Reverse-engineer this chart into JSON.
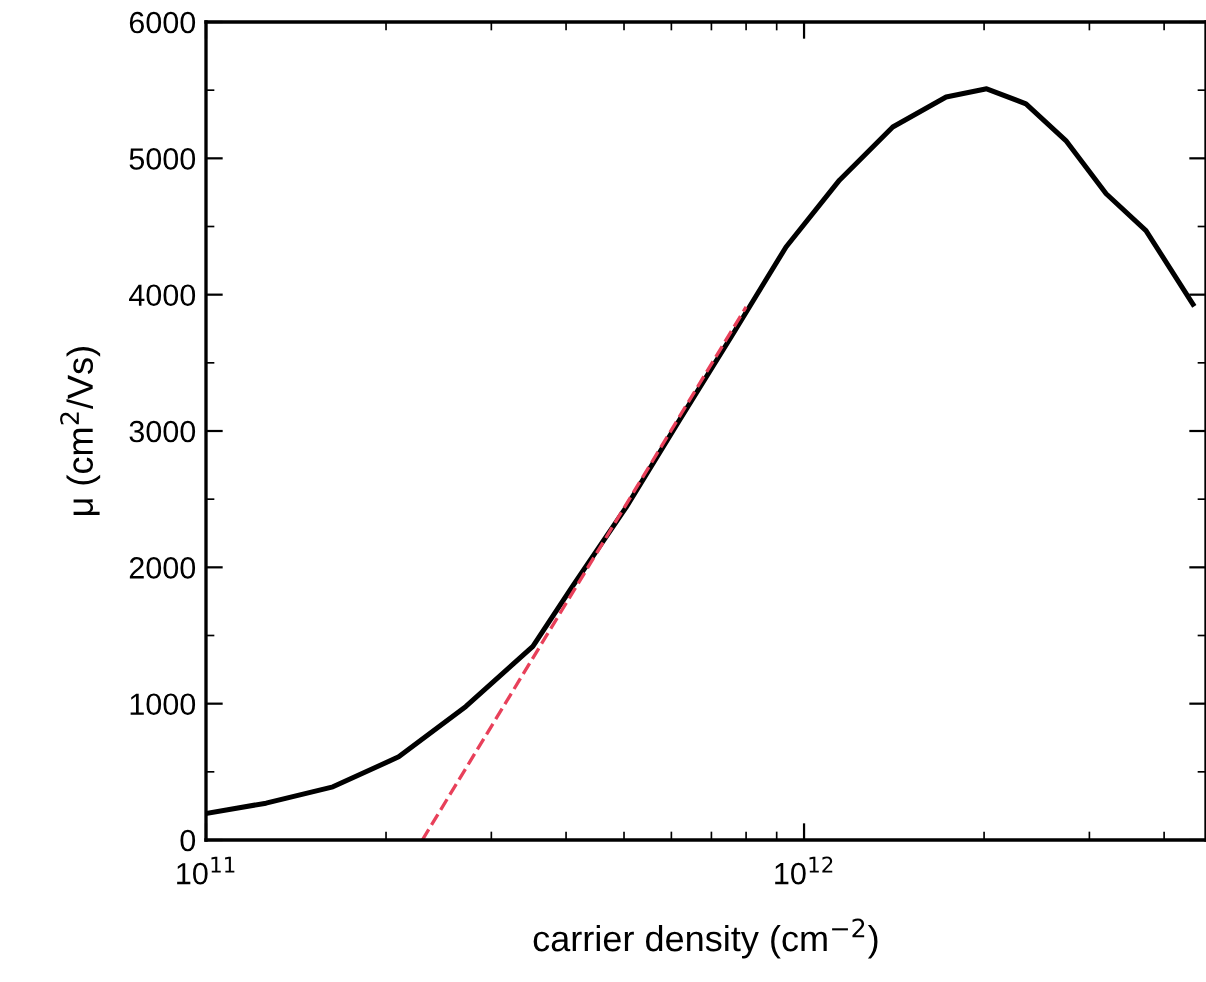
{
  "chart_data": {
    "type": "line",
    "xlabel": "carrier density (cm$^{−2}$)",
    "ylabel": "μ (cm$^{2}$/Vs)",
    "log": "x",
    "xlim": [
      100000000000.0,
      4700000000000.0
    ],
    "xticks": [
      {
        "value": 100000000000.0,
        "label": "10$^{11}$"
      },
      {
        "value": 1000000000000.0,
        "label": "10$^{12}$"
      }
    ],
    "ylim": [
      0,
      6000
    ],
    "yticks": [
      0,
      1000,
      2000,
      3000,
      4000,
      5000,
      6000
    ],
    "grid": false,
    "legend": false,
    "marker": "none",
    "series": [
      {
        "color": "#000000",
        "line_style": "solid",
        "x": [
          100000000000.0,
          126000000000.0,
          163000000000.0,
          210000000000.0,
          272000000000.0,
          352000000000.0,
          410000000000.0,
          504000000000.0,
          619000000000.0,
          760000000000.0,
          933000000000.0,
          1146000000000.0,
          1407000000000.0,
          1728000000000.0,
          2020000000000.0,
          2350000000000.0,
          2740000000000.0,
          3200000000000.0,
          3730000000000.0,
          4470000000000.0
        ],
        "values": [
          195,
          270,
          390,
          610,
          980,
          1420,
          1860,
          2440,
          3080,
          3710,
          4350,
          4840,
          5230,
          5450,
          5510,
          5400,
          5130,
          4740,
          4470,
          3930
        ]
      },
      {
        "color": "#e8405a",
        "line_style": "dashed",
        "x": [
          230000000000.0,
          800000000000.0
        ],
        "values": [
          0,
          3910
        ]
      }
    ]
  }
}
